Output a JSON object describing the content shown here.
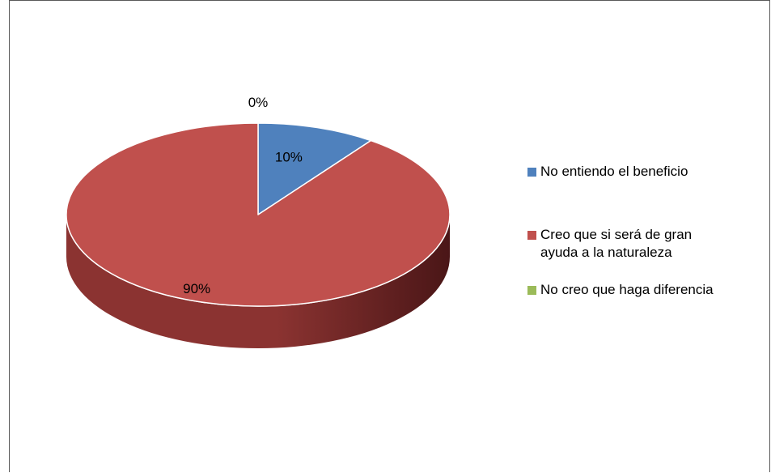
{
  "chart_data": {
    "type": "pie",
    "style": "3d",
    "start_angle_deg": 0,
    "direction": "clockwise",
    "categories": [
      "No entiendo el beneficio",
      "Creo que si será de gran ayuda a la naturaleza",
      "No creo que haga diferencia"
    ],
    "values": [
      10,
      90,
      0
    ],
    "labels": [
      "10%",
      "90%",
      "0%"
    ],
    "colors": [
      "#4F81BD",
      "#C0504D",
      "#9BBB59"
    ],
    "side_color": "#8B3331",
    "side_color_dark": "#4A1617",
    "legend_position": "right",
    "legend": [
      {
        "label": "No entiendo el beneficio",
        "color": "#4F81BD"
      },
      {
        "label": "Creo que si será de gran\nayuda a la naturaleza",
        "color": "#C0504D"
      },
      {
        "label": "No creo que haga diferencia",
        "color": "#9BBB59"
      }
    ]
  }
}
